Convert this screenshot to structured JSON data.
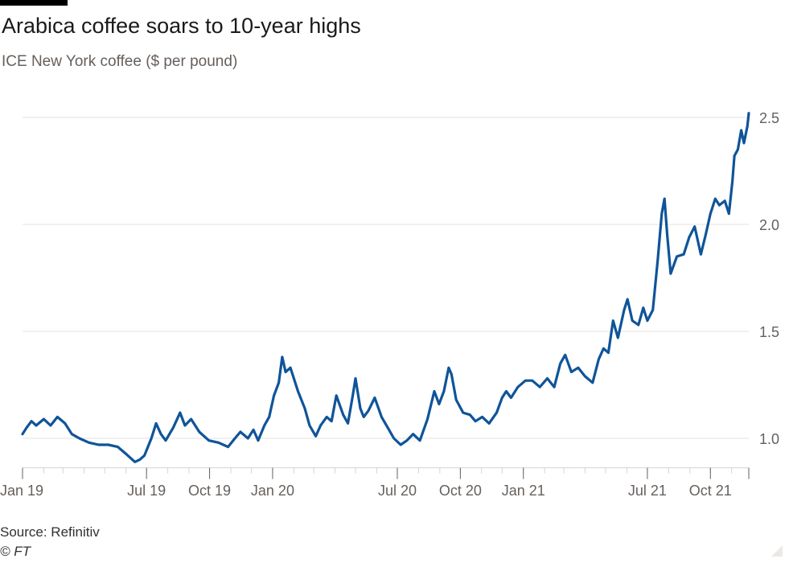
{
  "header": {
    "title": "Arabica coffee soars to 10-year highs",
    "subtitle": "ICE New York coffee ($ per pound)"
  },
  "footer": {
    "source": "Source: Refinitiv",
    "credit": "© FT"
  },
  "colors": {
    "line": "#0f5499",
    "grid": "#e6e2df",
    "axis_text": "#66605c",
    "baseline": "#d9d3cf"
  },
  "chart_data": {
    "type": "line",
    "title": "Arabica coffee soars to 10-year highs",
    "ylabel": "ICE New York coffee ($ per pound)",
    "xlabel": "",
    "ylim": [
      0.87,
      2.52
    ],
    "y_ticks": [
      1.0,
      1.5,
      2.0,
      2.5
    ],
    "y_tick_labels": [
      "1.0",
      "1.5",
      "2.0",
      "2.5"
    ],
    "grid": true,
    "x_range": [
      "2019-01-01",
      "2021-11-26"
    ],
    "x_ticks": [
      {
        "date": "2019-01-01",
        "label": "Jan 19"
      },
      {
        "date": "2019-07-01",
        "label": "Jul 19"
      },
      {
        "date": "2019-10-01",
        "label": "Oct 19"
      },
      {
        "date": "2020-01-01",
        "label": "Jan 20"
      },
      {
        "date": "2020-07-01",
        "label": "Jul 20"
      },
      {
        "date": "2020-10-01",
        "label": "Oct 20"
      },
      {
        "date": "2021-01-01",
        "label": "Jan 21"
      },
      {
        "date": "2021-07-01",
        "label": "Jul 21"
      },
      {
        "date": "2021-10-01",
        "label": "Oct 21"
      }
    ],
    "series": [
      {
        "name": "ICE New York coffee",
        "points": [
          [
            "2019-01-01",
            1.02
          ],
          [
            "2019-01-07",
            1.05
          ],
          [
            "2019-01-14",
            1.08
          ],
          [
            "2019-01-21",
            1.06
          ],
          [
            "2019-02-01",
            1.09
          ],
          [
            "2019-02-11",
            1.06
          ],
          [
            "2019-02-21",
            1.1
          ],
          [
            "2019-03-04",
            1.07
          ],
          [
            "2019-03-14",
            1.02
          ],
          [
            "2019-03-25",
            1.0
          ],
          [
            "2019-04-08",
            0.98
          ],
          [
            "2019-04-22",
            0.97
          ],
          [
            "2019-05-06",
            0.97
          ],
          [
            "2019-05-20",
            0.96
          ],
          [
            "2019-05-31",
            0.93
          ],
          [
            "2019-06-07",
            0.91
          ],
          [
            "2019-06-14",
            0.89
          ],
          [
            "2019-06-21",
            0.9
          ],
          [
            "2019-06-28",
            0.92
          ],
          [
            "2019-07-08",
            1.0
          ],
          [
            "2019-07-15",
            1.07
          ],
          [
            "2019-07-22",
            1.02
          ],
          [
            "2019-07-29",
            0.99
          ],
          [
            "2019-08-09",
            1.05
          ],
          [
            "2019-08-19",
            1.12
          ],
          [
            "2019-08-26",
            1.06
          ],
          [
            "2019-09-04",
            1.09
          ],
          [
            "2019-09-16",
            1.03
          ],
          [
            "2019-09-30",
            0.99
          ],
          [
            "2019-10-14",
            0.98
          ],
          [
            "2019-10-28",
            0.96
          ],
          [
            "2019-11-07",
            1.0
          ],
          [
            "2019-11-15",
            1.03
          ],
          [
            "2019-11-26",
            1.0
          ],
          [
            "2019-12-04",
            1.04
          ],
          [
            "2019-12-11",
            0.99
          ],
          [
            "2019-12-20",
            1.06
          ],
          [
            "2019-12-27",
            1.1
          ],
          [
            "2020-01-03",
            1.2
          ],
          [
            "2020-01-10",
            1.26
          ],
          [
            "2020-01-15",
            1.38
          ],
          [
            "2020-01-20",
            1.31
          ],
          [
            "2020-01-27",
            1.33
          ],
          [
            "2020-02-07",
            1.22
          ],
          [
            "2020-02-17",
            1.14
          ],
          [
            "2020-02-24",
            1.06
          ],
          [
            "2020-03-04",
            1.01
          ],
          [
            "2020-03-11",
            1.06
          ],
          [
            "2020-03-20",
            1.1
          ],
          [
            "2020-03-27",
            1.08
          ],
          [
            "2020-04-03",
            1.2
          ],
          [
            "2020-04-13",
            1.11
          ],
          [
            "2020-04-20",
            1.07
          ],
          [
            "2020-04-27",
            1.2
          ],
          [
            "2020-05-01",
            1.28
          ],
          [
            "2020-05-08",
            1.14
          ],
          [
            "2020-05-13",
            1.1
          ],
          [
            "2020-05-20",
            1.13
          ],
          [
            "2020-05-29",
            1.19
          ],
          [
            "2020-06-08",
            1.1
          ],
          [
            "2020-06-17",
            1.05
          ],
          [
            "2020-06-26",
            1.0
          ],
          [
            "2020-07-06",
            0.97
          ],
          [
            "2020-07-15",
            0.99
          ],
          [
            "2020-07-24",
            1.02
          ],
          [
            "2020-08-03",
            0.99
          ],
          [
            "2020-08-14",
            1.09
          ],
          [
            "2020-08-24",
            1.22
          ],
          [
            "2020-08-31",
            1.16
          ],
          [
            "2020-09-07",
            1.22
          ],
          [
            "2020-09-14",
            1.33
          ],
          [
            "2020-09-18",
            1.3
          ],
          [
            "2020-09-25",
            1.18
          ],
          [
            "2020-10-05",
            1.12
          ],
          [
            "2020-10-15",
            1.11
          ],
          [
            "2020-10-23",
            1.08
          ],
          [
            "2020-11-02",
            1.1
          ],
          [
            "2020-11-12",
            1.07
          ],
          [
            "2020-11-23",
            1.12
          ],
          [
            "2020-12-01",
            1.19
          ],
          [
            "2020-12-07",
            1.22
          ],
          [
            "2020-12-14",
            1.19
          ],
          [
            "2020-12-24",
            1.24
          ],
          [
            "2021-01-04",
            1.27
          ],
          [
            "2021-01-14",
            1.27
          ],
          [
            "2021-01-25",
            1.24
          ],
          [
            "2021-02-05",
            1.28
          ],
          [
            "2021-02-15",
            1.24
          ],
          [
            "2021-02-24",
            1.35
          ],
          [
            "2021-03-03",
            1.39
          ],
          [
            "2021-03-12",
            1.31
          ],
          [
            "2021-03-22",
            1.33
          ],
          [
            "2021-04-01",
            1.29
          ],
          [
            "2021-04-12",
            1.26
          ],
          [
            "2021-04-21",
            1.37
          ],
          [
            "2021-04-28",
            1.42
          ],
          [
            "2021-05-05",
            1.4
          ],
          [
            "2021-05-12",
            1.55
          ],
          [
            "2021-05-19",
            1.47
          ],
          [
            "2021-05-28",
            1.6
          ],
          [
            "2021-06-02",
            1.65
          ],
          [
            "2021-06-09",
            1.55
          ],
          [
            "2021-06-18",
            1.53
          ],
          [
            "2021-06-25",
            1.61
          ],
          [
            "2021-07-01",
            1.55
          ],
          [
            "2021-07-09",
            1.6
          ],
          [
            "2021-07-16",
            1.83
          ],
          [
            "2021-07-22",
            2.05
          ],
          [
            "2021-07-26",
            2.12
          ],
          [
            "2021-07-30",
            1.95
          ],
          [
            "2021-08-04",
            1.77
          ],
          [
            "2021-08-13",
            1.85
          ],
          [
            "2021-08-23",
            1.86
          ],
          [
            "2021-08-31",
            1.94
          ],
          [
            "2021-09-08",
            1.99
          ],
          [
            "2021-09-17",
            1.86
          ],
          [
            "2021-09-24",
            1.95
          ],
          [
            "2021-10-01",
            2.05
          ],
          [
            "2021-10-08",
            2.12
          ],
          [
            "2021-10-14",
            2.09
          ],
          [
            "2021-10-22",
            2.11
          ],
          [
            "2021-10-28",
            2.05
          ],
          [
            "2021-11-02",
            2.2
          ],
          [
            "2021-11-05",
            2.32
          ],
          [
            "2021-11-10",
            2.35
          ],
          [
            "2021-11-15",
            2.44
          ],
          [
            "2021-11-19",
            2.38
          ],
          [
            "2021-11-24",
            2.46
          ],
          [
            "2021-11-26",
            2.52
          ]
        ]
      }
    ]
  }
}
